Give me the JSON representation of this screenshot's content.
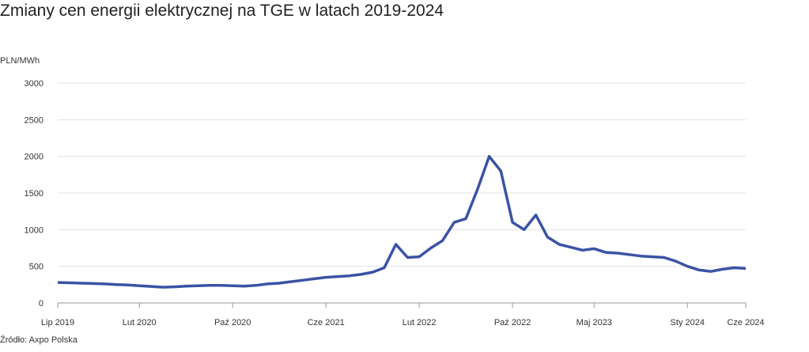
{
  "chart_data": {
    "type": "line",
    "title": "Zmiany cen energii elektrycznej na TGE w latach 2019-2024",
    "y_label": "PLN/MWh",
    "source": "Źródło: Axpo Polska",
    "x": [
      "2019-07",
      "2019-08",
      "2019-09",
      "2019-10",
      "2019-11",
      "2019-12",
      "2020-01",
      "2020-02",
      "2020-03",
      "2020-04",
      "2020-05",
      "2020-06",
      "2020-07",
      "2020-08",
      "2020-09",
      "2020-10",
      "2020-11",
      "2020-12",
      "2021-01",
      "2021-02",
      "2021-03",
      "2021-04",
      "2021-05",
      "2021-06",
      "2021-07",
      "2021-08",
      "2021-09",
      "2021-10",
      "2021-11",
      "2021-12",
      "2022-01",
      "2022-02",
      "2022-03",
      "2022-04",
      "2022-05",
      "2022-06",
      "2022-07",
      "2022-08",
      "2022-09",
      "2022-10",
      "2022-11",
      "2022-12",
      "2023-01",
      "2023-02",
      "2023-03",
      "2023-04",
      "2023-05",
      "2023-06",
      "2023-07",
      "2023-08",
      "2023-09",
      "2023-10",
      "2023-11",
      "2023-12",
      "2024-01",
      "2024-02",
      "2024-03",
      "2024-04",
      "2024-05",
      "2024-06"
    ],
    "series": [
      {
        "name": "PLN/MWh",
        "color": "#3a53a4",
        "values": [
          280,
          275,
          270,
          265,
          260,
          250,
          245,
          235,
          225,
          215,
          220,
          230,
          235,
          240,
          240,
          235,
          230,
          240,
          260,
          270,
          290,
          310,
          330,
          350,
          360,
          370,
          390,
          420,
          480,
          800,
          620,
          630,
          750,
          850,
          1100,
          1150,
          1550,
          2000,
          1800,
          1100,
          1000,
          1200,
          900,
          800,
          760,
          720,
          740,
          690,
          680,
          660,
          640,
          630,
          620,
          570,
          500,
          450,
          430,
          460,
          480,
          470
        ]
      }
    ],
    "xlim": [
      "2019-07",
      "2024-06"
    ],
    "xticks": [
      {
        "value": "2019-07",
        "label": "Lip 2019"
      },
      {
        "value": "2020-02",
        "label": "Lut 2020"
      },
      {
        "value": "2020-10",
        "label": "Paź 2020"
      },
      {
        "value": "2021-06",
        "label": "Cze 2021"
      },
      {
        "value": "2022-02",
        "label": "Lut 2022"
      },
      {
        "value": "2022-10",
        "label": "Paź 2022"
      },
      {
        "value": "2023-05",
        "label": "Maj 2023"
      },
      {
        "value": "2024-01",
        "label": "Sty 2024"
      },
      {
        "value": "2024-06",
        "label": "Cze 2024"
      }
    ],
    "ylim": [
      0,
      3000
    ],
    "yticks": [
      0,
      500,
      1000,
      1500,
      2000,
      2500,
      3000
    ],
    "grid": true
  }
}
